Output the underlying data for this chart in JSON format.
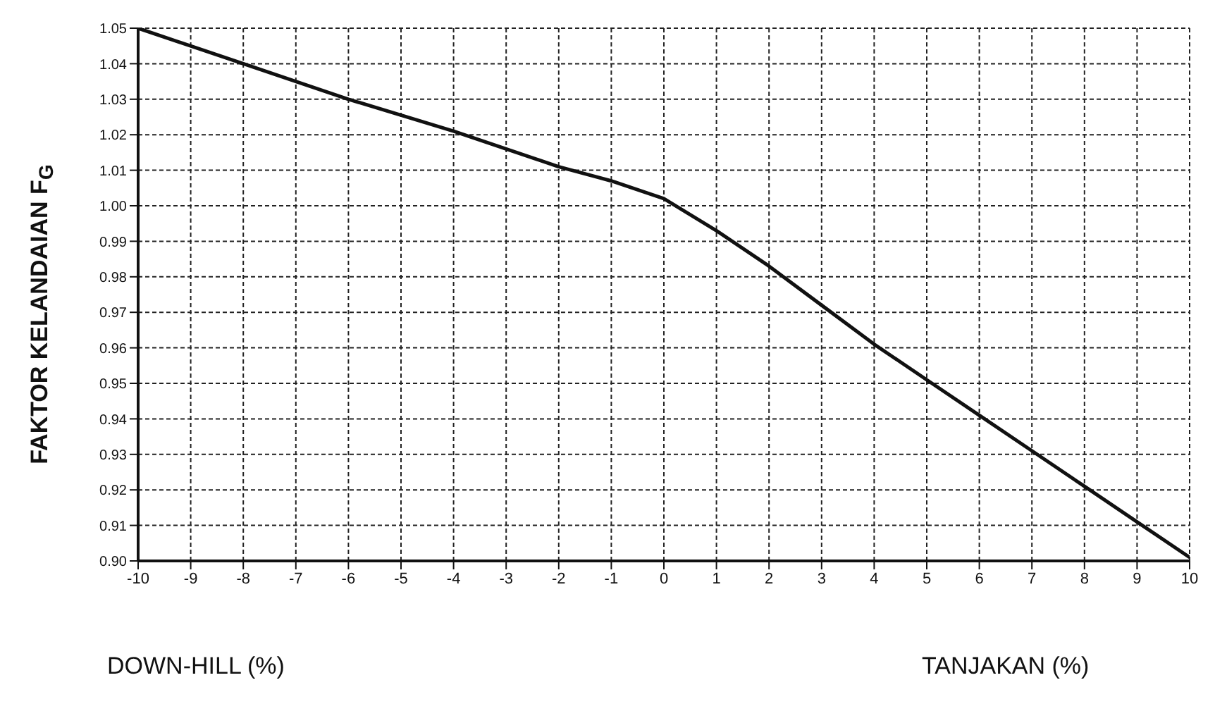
{
  "chart_data": {
    "type": "line",
    "ylabel": "FAKTOR KELANDAIAN F$_{G}$",
    "annotations": [
      "DOWN-HILL (%)",
      "TANJAKAN (%)"
    ],
    "x": [
      -10,
      -8,
      -6,
      -4,
      -3,
      -2,
      -1,
      0,
      1,
      2,
      3,
      4,
      5,
      6,
      7,
      8,
      9,
      10
    ],
    "series": [
      {
        "color": "#111111",
        "values": [
          1.05,
          1.04,
          1.03,
          1.021,
          1.016,
          1.011,
          1.007,
          1.002,
          0.993,
          0.983,
          0.972,
          0.961,
          0.951,
          0.941,
          0.931,
          0.921,
          0.911,
          0.901
        ]
      }
    ],
    "xlim": [
      -10,
      10
    ],
    "xticks": [
      -10,
      -9,
      -8,
      -7,
      -6,
      -5,
      -4,
      -3,
      -2,
      -1,
      0,
      1,
      2,
      3,
      4,
      5,
      6,
      7,
      8,
      9,
      10
    ],
    "ylim": [
      0.9,
      1.05
    ],
    "yticks": [
      {
        "value": 0.9,
        "label": "0.90"
      },
      0.91,
      0.92,
      0.93,
      0.94,
      0.95,
      0.96,
      0.97,
      0.98,
      0.99,
      {
        "value": 1.0,
        "label": "1.00"
      },
      1.01,
      1.02,
      1.03,
      1.04,
      1.05
    ],
    "grid": true,
    "marker": "none",
    "line_style": "solid"
  }
}
